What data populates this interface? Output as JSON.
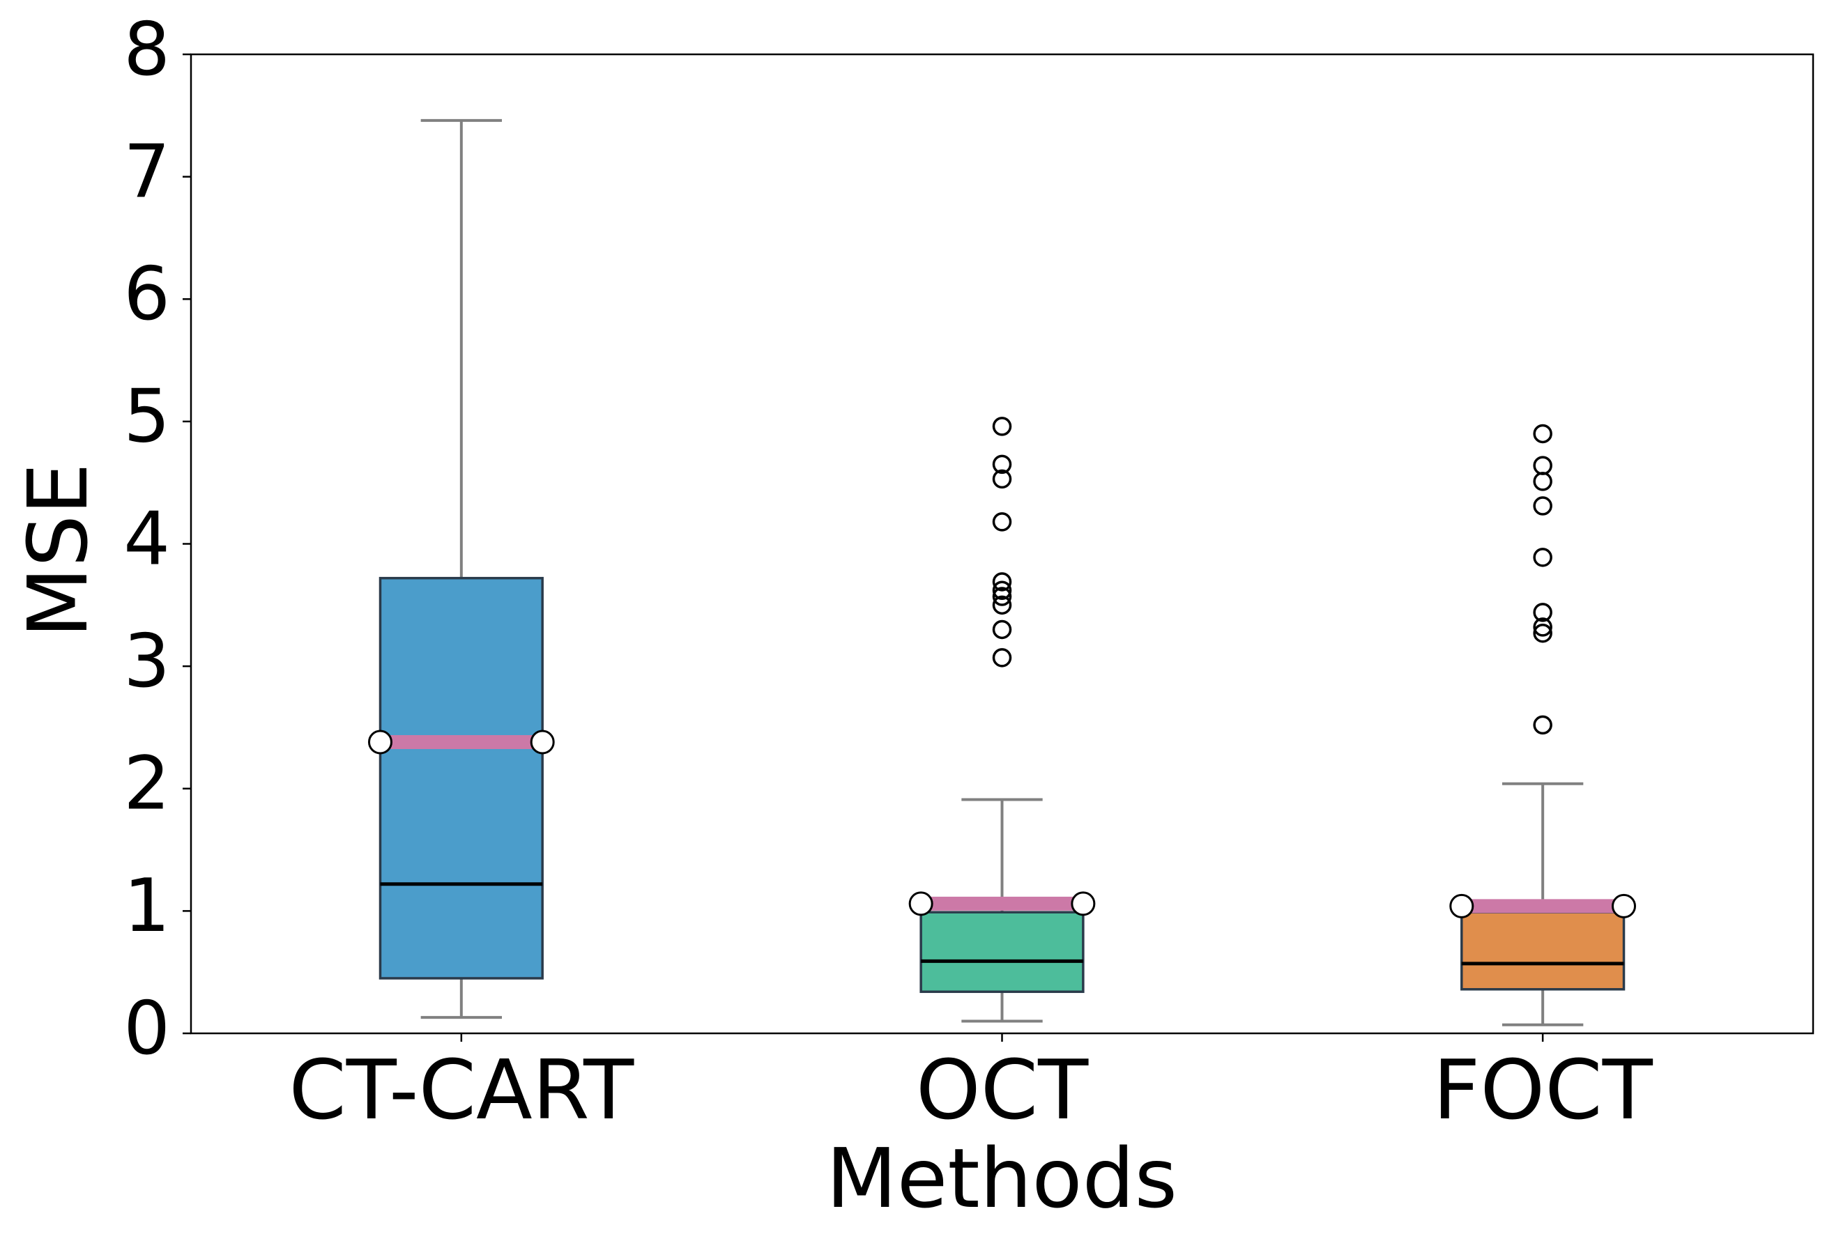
{
  "chart_data": {
    "type": "box",
    "xlabel": "Methods",
    "ylabel": "MSE",
    "categories": [
      "CT-CART",
      "OCT",
      "FOCT"
    ],
    "colors": [
      "#4b9dcb",
      "#4dbd9b",
      "#e08e4c"
    ],
    "mean_color": "#cc79a7",
    "boxes": [
      {
        "whislo": 0.13,
        "q1": 0.45,
        "med": 1.22,
        "q3": 3.72,
        "whishi": 7.46,
        "mean": 2.38,
        "fliers": []
      },
      {
        "whislo": 0.1,
        "q1": 0.34,
        "med": 0.59,
        "q3": 0.99,
        "whishi": 1.91,
        "mean": 1.06,
        "fliers": [
          4.96,
          4.65,
          4.53,
          4.18,
          3.69,
          3.62,
          3.57,
          3.5,
          3.3,
          3.07
        ]
      },
      {
        "whislo": 0.07,
        "q1": 0.36,
        "med": 0.57,
        "q3": 0.99,
        "whishi": 2.04,
        "mean": 1.04,
        "fliers": [
          4.9,
          4.64,
          4.51,
          4.31,
          3.89,
          3.44,
          3.32,
          3.27,
          2.52
        ]
      }
    ],
    "ylim": [
      0,
      8
    ],
    "yticks": [
      0,
      1,
      2,
      3,
      4,
      5,
      6,
      7,
      8
    ],
    "grid": false
  }
}
